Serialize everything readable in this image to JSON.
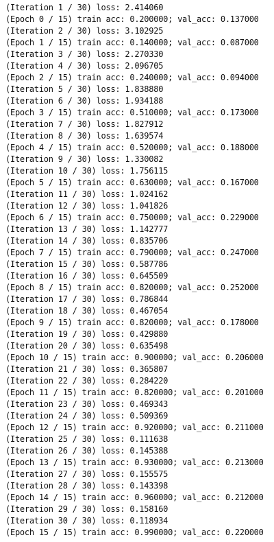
{
  "output": {
    "lines": [
      "(Iteration 1 / 30) loss: 2.414060",
      "(Epoch 0 / 15) train acc: 0.200000; val_acc: 0.137000",
      "(Iteration 2 / 30) loss: 3.102925",
      "(Epoch 1 / 15) train acc: 0.140000; val_acc: 0.087000",
      "(Iteration 3 / 30) loss: 2.270330",
      "(Iteration 4 / 30) loss: 2.096705",
      "(Epoch 2 / 15) train acc: 0.240000; val_acc: 0.094000",
      "(Iteration 5 / 30) loss: 1.838880",
      "(Iteration 6 / 30) loss: 1.934188",
      "(Epoch 3 / 15) train acc: 0.510000; val_acc: 0.173000",
      "(Iteration 7 / 30) loss: 1.827912",
      "(Iteration 8 / 30) loss: 1.639574",
      "(Epoch 4 / 15) train acc: 0.520000; val_acc: 0.188000",
      "(Iteration 9 / 30) loss: 1.330082",
      "(Iteration 10 / 30) loss: 1.756115",
      "(Epoch 5 / 15) train acc: 0.630000; val_acc: 0.167000",
      "(Iteration 11 / 30) loss: 1.024162",
      "(Iteration 12 / 30) loss: 1.041826",
      "(Epoch 6 / 15) train acc: 0.750000; val_acc: 0.229000",
      "(Iteration 13 / 30) loss: 1.142777",
      "(Iteration 14 / 30) loss: 0.835706",
      "(Epoch 7 / 15) train acc: 0.790000; val_acc: 0.247000",
      "(Iteration 15 / 30) loss: 0.587786",
      "(Iteration 16 / 30) loss: 0.645509",
      "(Epoch 8 / 15) train acc: 0.820000; val_acc: 0.252000",
      "(Iteration 17 / 30) loss: 0.786844",
      "(Iteration 18 / 30) loss: 0.467054",
      "(Epoch 9 / 15) train acc: 0.820000; val_acc: 0.178000",
      "(Iteration 19 / 30) loss: 0.429880",
      "(Iteration 20 / 30) loss: 0.635498",
      "(Epoch 10 / 15) train acc: 0.900000; val_acc: 0.206000",
      "(Iteration 21 / 30) loss: 0.365807",
      "(Iteration 22 / 30) loss: 0.284220",
      "(Epoch 11 / 15) train acc: 0.820000; val_acc: 0.201000",
      "(Iteration 23 / 30) loss: 0.469343",
      "(Iteration 24 / 30) loss: 0.509369",
      "(Epoch 12 / 15) train acc: 0.920000; val_acc: 0.211000",
      "(Iteration 25 / 30) loss: 0.111638",
      "(Iteration 26 / 30) loss: 0.145388",
      "(Epoch 13 / 15) train acc: 0.930000; val_acc: 0.213000",
      "(Iteration 27 / 30) loss: 0.155575",
      "(Iteration 28 / 30) loss: 0.143398",
      "(Epoch 14 / 15) train acc: 0.960000; val_acc: 0.212000",
      "(Iteration 29 / 30) loss: 0.158160",
      "(Iteration 30 / 30) loss: 0.118934",
      "(Epoch 15 / 15) train acc: 0.990000; val_acc: 0.220000"
    ]
  }
}
